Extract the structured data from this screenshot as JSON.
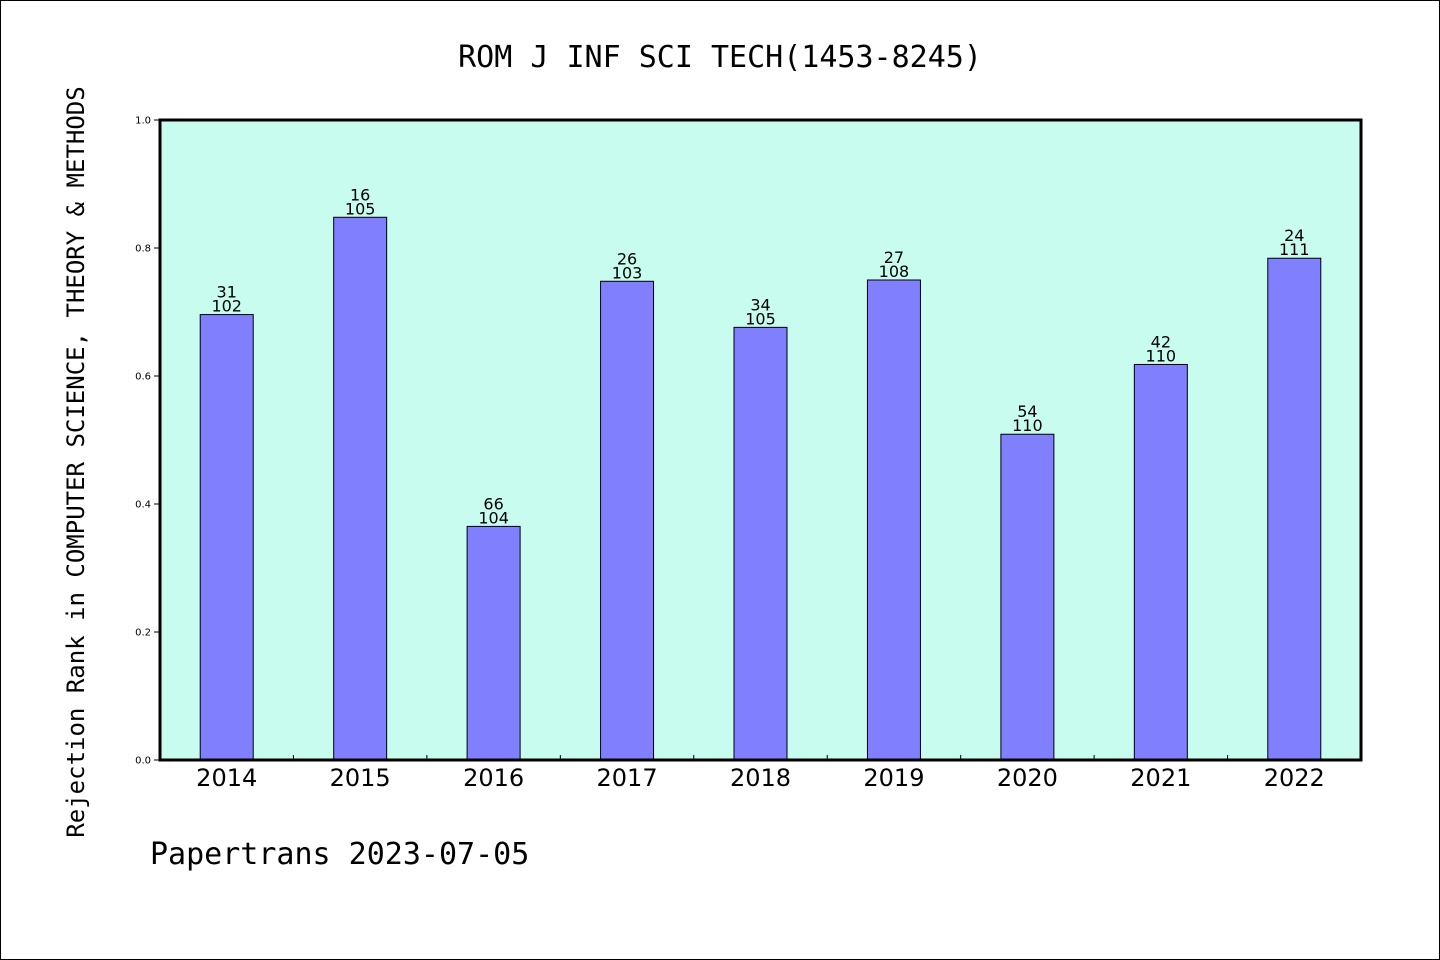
{
  "chart_data": {
    "type": "bar",
    "title": "ROM J INF SCI TECH(1453-8245)",
    "ylabel": "Rejection Rank in COMPUTER SCIENCE, THEORY & METHODS",
    "xlabel": "",
    "categories": [
      "2014",
      "2015",
      "2016",
      "2017",
      "2018",
      "2019",
      "2020",
      "2021",
      "2022"
    ],
    "values": [
      0.696,
      0.848,
      0.365,
      0.748,
      0.676,
      0.75,
      0.509,
      0.618,
      0.784
    ],
    "labels_top": [
      "31",
      "16",
      "66",
      "26",
      "34",
      "27",
      "54",
      "42",
      "24"
    ],
    "labels_bottom": [
      "102",
      "105",
      "104",
      "103",
      "105",
      "108",
      "110",
      "110",
      "111"
    ],
    "ylim": [
      0.0,
      1.0
    ],
    "yticks": [
      0.0,
      0.2,
      0.4,
      0.6,
      0.8,
      1.0
    ],
    "ytick_labels": [
      "0.0",
      "0.2",
      "0.4",
      "0.6",
      "0.8",
      "1.0"
    ],
    "grid": false,
    "legend": "none",
    "colors": {
      "plot_background": "#c8fcee",
      "bar_fill": "#8080ff",
      "bar_stroke": "#000000",
      "axis": "#000000"
    }
  },
  "footer": "Papertrans 2023-07-05"
}
